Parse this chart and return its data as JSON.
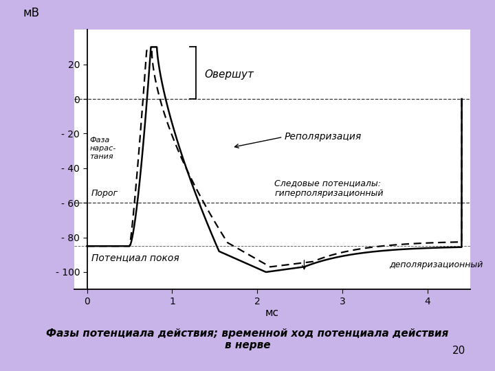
{
  "background_color": "#c8b4e8",
  "xlabel": "мс",
  "ylabel": "мВ",
  "xlim": [
    -0.15,
    4.5
  ],
  "ylim": [
    -110,
    40
  ],
  "yticks": [
    20,
    0,
    -20,
    -40,
    -60,
    -80,
    -100
  ],
  "ytick_labels": [
    "20",
    "0",
    "- 20",
    "- 40",
    "- 60",
    "- 80",
    "- 100"
  ],
  "xticks": [
    0,
    1,
    2,
    3,
    4
  ],
  "xtick_labels": [
    "0",
    "1",
    "2",
    "3",
    "4"
  ],
  "footer_text": "Фазы потенциала действия; временной ход потенциала действия\nв нерве",
  "footer_page": "20",
  "label_fase": "Фаза\nнарас-\nтания",
  "label_repol": "Реполяризация",
  "label_overshoot": "Овершут",
  "label_porog": "Порог",
  "label_pokoy": "Потенциал покоя",
  "label_sled": "Следовые потенциалы:\nгиперполяризационный",
  "label_depol": "деполяризационный"
}
